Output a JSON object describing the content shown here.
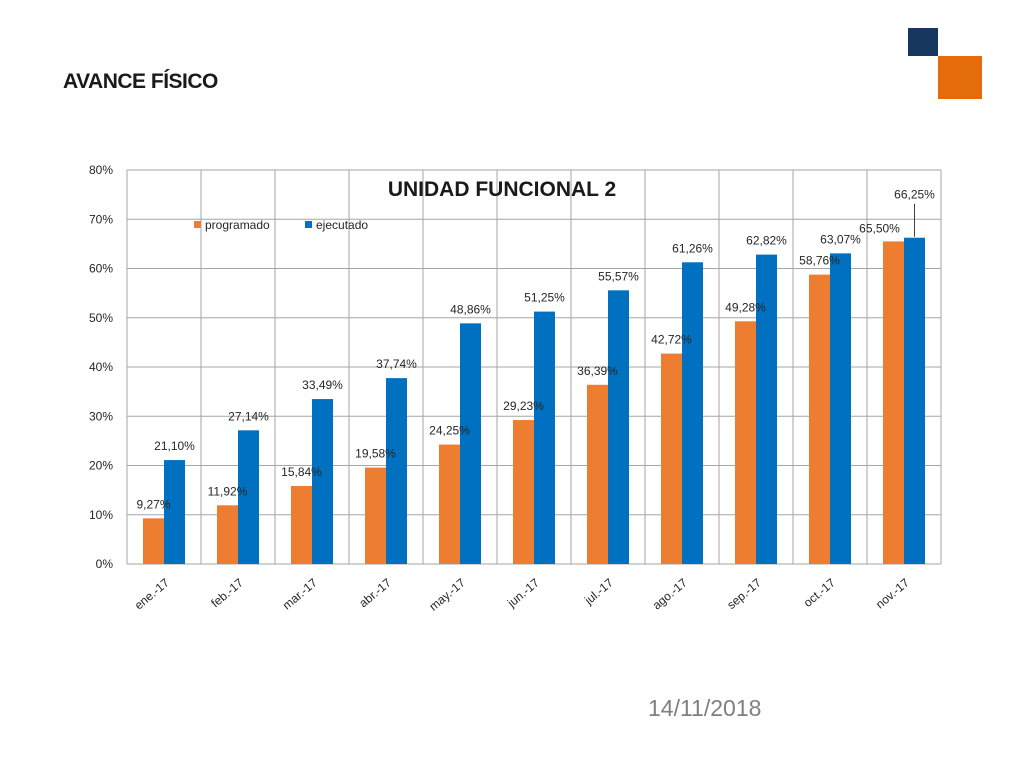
{
  "slide": {
    "heading": "AVANCE FÍSICO",
    "date": "14/11/2018",
    "colors": {
      "navy_square": "#17375e",
      "orange_square": "#e46c0a"
    }
  },
  "chart_data": {
    "type": "bar",
    "title": "UNIDAD FUNCIONAL 2",
    "xlabel": "",
    "ylabel": "",
    "categories": [
      "ene.-17",
      "feb.-17",
      "mar.-17",
      "abr.-17",
      "may.-17",
      "jun.-17",
      "jul.-17",
      "ago.-17",
      "sep.-17",
      "oct.-17",
      "nov.-17"
    ],
    "series": [
      {
        "name": "programado",
        "color": "#ed7d31",
        "values": [
          9.27,
          11.92,
          15.84,
          19.58,
          24.25,
          29.23,
          36.39,
          42.72,
          49.28,
          58.76,
          65.5
        ],
        "labels": [
          "9,27%",
          "11,92%",
          "15,84%",
          "19,58%",
          "24,25%",
          "29,23%",
          "36,39%",
          "42,72%",
          "49,28%",
          "58,76%",
          "65,50%"
        ]
      },
      {
        "name": "ejecutado",
        "color": "#0070c0",
        "values": [
          21.1,
          27.14,
          33.49,
          37.74,
          48.86,
          51.25,
          55.57,
          61.26,
          62.82,
          63.07,
          66.25
        ],
        "labels": [
          "21,10%",
          "27,14%",
          "33,49%",
          "37,74%",
          "48,86%",
          "51,25%",
          "55,57%",
          "61,26%",
          "62,82%",
          "63,07%",
          "66,25%"
        ]
      }
    ],
    "ylim": [
      0,
      80
    ],
    "yticks": [
      0,
      10,
      20,
      30,
      40,
      50,
      60,
      70,
      80
    ],
    "ytick_labels": [
      "0%",
      "10%",
      "20%",
      "30%",
      "40%",
      "50%",
      "60%",
      "70%",
      "80%"
    ],
    "grid": true,
    "legend_position": "top-left"
  }
}
